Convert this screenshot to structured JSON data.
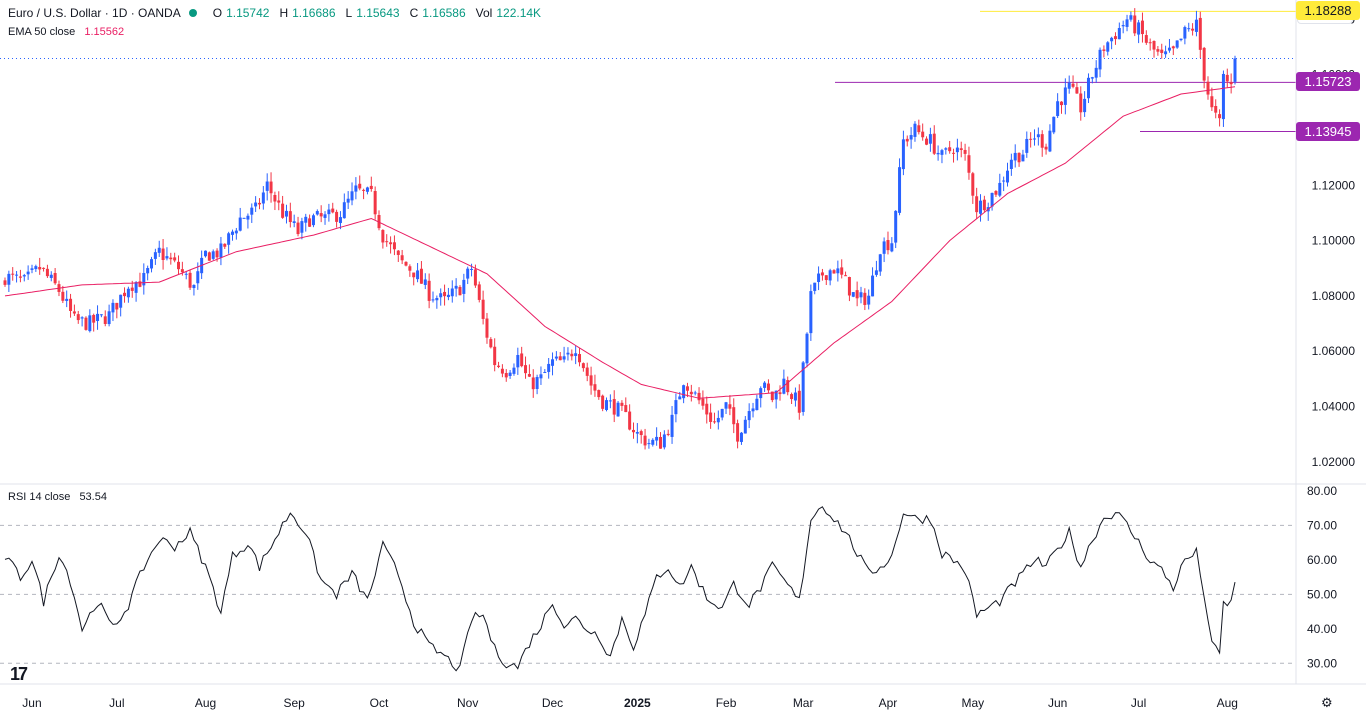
{
  "header": {
    "symbol": "Euro / U.S. Dollar · 1D · OANDA",
    "o_label": "O",
    "o": "1.15742",
    "h_label": "H",
    "h": "1.16686",
    "l_label": "L",
    "l": "1.15643",
    "c_label": "C",
    "c": "1.16586",
    "vol_label": "Vol",
    "vol": "122.14K",
    "currency": "USD"
  },
  "ema": {
    "label": "EMA 50 close",
    "value": "1.15562"
  },
  "rsi": {
    "label": "RSI 14 close",
    "value": "53.54"
  },
  "colors": {
    "up": "#2962ff",
    "down": "#f23645",
    "ema": "#e91e63",
    "rsi": "#131722",
    "resistance": "#ffeb3b",
    "support": "#9c27b0"
  },
  "icons": {
    "logo": "tradingview-logo-icon",
    "settings": "gear-icon"
  },
  "chart_data": [
    {
      "type": "candlestick",
      "title": "Euro / U.S. Dollar · 1D · OANDA",
      "ylim": [
        1.012,
        1.187
      ],
      "y_ticks": [
        "1.18000",
        "1.16000",
        "1.14000",
        "1.12000",
        "1.10000",
        "1.08000",
        "1.06000",
        "1.04000",
        "1.02000"
      ],
      "x_ticks": [
        {
          "label": "Jun",
          "i": 7
        },
        {
          "label": "Jul",
          "i": 29
        },
        {
          "label": "Aug",
          "i": 52
        },
        {
          "label": "Sep",
          "i": 75
        },
        {
          "label": "Oct",
          "i": 97
        },
        {
          "label": "Nov",
          "i": 120
        },
        {
          "label": "Dec",
          "i": 142
        },
        {
          "label": "2025",
          "i": 164
        },
        {
          "label": "Feb",
          "i": 187
        },
        {
          "label": "Mar",
          "i": 207
        },
        {
          "label": "Apr",
          "i": 229
        },
        {
          "label": "May",
          "i": 251
        },
        {
          "label": "Jun",
          "i": 273
        },
        {
          "label": "Jul",
          "i": 294
        },
        {
          "label": "Aug",
          "i": 317
        }
      ],
      "price_levels": [
        {
          "value": 1.18288,
          "label": "1.18288",
          "kind": "resistance"
        },
        {
          "value": 1.15723,
          "label": "1.15723",
          "kind": "support"
        },
        {
          "value": 1.13945,
          "label": "1.13945",
          "kind": "support"
        }
      ],
      "current_price": 1.16586,
      "close_anchors": [
        [
          0,
          1.087
        ],
        [
          5,
          1.085
        ],
        [
          9,
          1.09
        ],
        [
          14,
          1.082
        ],
        [
          18,
          1.071
        ],
        [
          22,
          1.07
        ],
        [
          27,
          1.073
        ],
        [
          32,
          1.084
        ],
        [
          36,
          1.086
        ],
        [
          40,
          1.096
        ],
        [
          45,
          1.09
        ],
        [
          49,
          1.083
        ],
        [
          52,
          1.095
        ],
        [
          56,
          1.096
        ],
        [
          61,
          1.108
        ],
        [
          65,
          1.111
        ],
        [
          68,
          1.12
        ],
        [
          72,
          1.11
        ],
        [
          76,
          1.103
        ],
        [
          79,
          1.108
        ],
        [
          83,
          1.108
        ],
        [
          87,
          1.11
        ],
        [
          91,
          1.118
        ],
        [
          95,
          1.116
        ],
        [
          98,
          1.102
        ],
        [
          102,
          1.093
        ],
        [
          106,
          1.089
        ],
        [
          110,
          1.081
        ],
        [
          114,
          1.078
        ],
        [
          118,
          1.083
        ],
        [
          121,
          1.09
        ],
        [
          124,
          1.071
        ],
        [
          127,
          1.056
        ],
        [
          130,
          1.053
        ],
        [
          133,
          1.058
        ],
        [
          136,
          1.048
        ],
        [
          139,
          1.05
        ],
        [
          142,
          1.056
        ],
        [
          145,
          1.056
        ],
        [
          148,
          1.062
        ],
        [
          152,
          1.048
        ],
        [
          155,
          1.042
        ],
        [
          158,
          1.04
        ],
        [
          161,
          1.036
        ],
        [
          164,
          1.03
        ],
        [
          167,
          1.027
        ],
        [
          170,
          1.027
        ],
        [
          173,
          1.035
        ],
        [
          176,
          1.05
        ],
        [
          180,
          1.042
        ],
        [
          184,
          1.034
        ],
        [
          187,
          1.04
        ],
        [
          190,
          1.03
        ],
        [
          193,
          1.039
        ],
        [
          196,
          1.048
        ],
        [
          199,
          1.043
        ],
        [
          202,
          1.049
        ],
        [
          206,
          1.04
        ],
        [
          209,
          1.08
        ],
        [
          212,
          1.088
        ],
        [
          215,
          1.09
        ],
        [
          218,
          1.085
        ],
        [
          221,
          1.078
        ],
        [
          224,
          1.08
        ],
        [
          227,
          1.098
        ],
        [
          230,
          1.1
        ],
        [
          233,
          1.136
        ],
        [
          236,
          1.14
        ],
        [
          240,
          1.136
        ],
        [
          243,
          1.13
        ],
        [
          246,
          1.134
        ],
        [
          249,
          1.13
        ],
        [
          252,
          1.112
        ],
        [
          255,
          1.115
        ],
        [
          258,
          1.12
        ],
        [
          261,
          1.13
        ],
        [
          264,
          1.132
        ],
        [
          267,
          1.138
        ],
        [
          270,
          1.135
        ],
        [
          273,
          1.15
        ],
        [
          276,
          1.155
        ],
        [
          279,
          1.148
        ],
        [
          282,
          1.16
        ],
        [
          285,
          1.17
        ],
        [
          288,
          1.175
        ],
        [
          291,
          1.18
        ],
        [
          294,
          1.176
        ],
        [
          297,
          1.17
        ],
        [
          300,
          1.166
        ],
        [
          303,
          1.168
        ],
        [
          306,
          1.175
        ],
        [
          309,
          1.178
        ],
        [
          311,
          1.16
        ],
        [
          313,
          1.147
        ],
        [
          315,
          1.142
        ],
        [
          316,
          1.159
        ],
        [
          318,
          1.156
        ],
        [
          319,
          1.16586
        ]
      ],
      "ema_anchors": [
        [
          0,
          1.08
        ],
        [
          20,
          1.084
        ],
        [
          40,
          1.085
        ],
        [
          60,
          1.096
        ],
        [
          80,
          1.102
        ],
        [
          95,
          1.108
        ],
        [
          110,
          1.098
        ],
        [
          125,
          1.088
        ],
        [
          140,
          1.069
        ],
        [
          155,
          1.056
        ],
        [
          165,
          1.048
        ],
        [
          180,
          1.043
        ],
        [
          200,
          1.045
        ],
        [
          215,
          1.063
        ],
        [
          230,
          1.078
        ],
        [
          245,
          1.1
        ],
        [
          260,
          1.117
        ],
        [
          275,
          1.128
        ],
        [
          290,
          1.145
        ],
        [
          305,
          1.153
        ],
        [
          319,
          1.15562
        ]
      ]
    },
    {
      "type": "line",
      "title": "RSI 14 close",
      "ylim": [
        24,
        82
      ],
      "y_ticks": [
        "80.00",
        "70.00",
        "60.00",
        "50.00",
        "40.00",
        "30.00"
      ],
      "dashed_levels": [
        70,
        50,
        30
      ],
      "last_value": 53.54,
      "anchors": [
        [
          0,
          61
        ],
        [
          4,
          55
        ],
        [
          7,
          60
        ],
        [
          10,
          48
        ],
        [
          14,
          62
        ],
        [
          17,
          54
        ],
        [
          20,
          40
        ],
        [
          24,
          48
        ],
        [
          28,
          40
        ],
        [
          32,
          47
        ],
        [
          36,
          58
        ],
        [
          40,
          66
        ],
        [
          44,
          64
        ],
        [
          48,
          68
        ],
        [
          52,
          58
        ],
        [
          56,
          45
        ],
        [
          59,
          61
        ],
        [
          63,
          65
        ],
        [
          66,
          58
        ],
        [
          70,
          66
        ],
        [
          74,
          74
        ],
        [
          78,
          68
        ],
        [
          82,
          54
        ],
        [
          86,
          50
        ],
        [
          90,
          56
        ],
        [
          94,
          48
        ],
        [
          98,
          64
        ],
        [
          102,
          56
        ],
        [
          106,
          42
        ],
        [
          110,
          35
        ],
        [
          114,
          32
        ],
        [
          118,
          28
        ],
        [
          121,
          43
        ],
        [
          124,
          44
        ],
        [
          127,
          34
        ],
        [
          130,
          30
        ],
        [
          133,
          29
        ],
        [
          136,
          36
        ],
        [
          139,
          41
        ],
        [
          142,
          48
        ],
        [
          145,
          41
        ],
        [
          148,
          43
        ],
        [
          151,
          40
        ],
        [
          154,
          38
        ],
        [
          157,
          32
        ],
        [
          160,
          43
        ],
        [
          163,
          35
        ],
        [
          166,
          44
        ],
        [
          169,
          55
        ],
        [
          172,
          58
        ],
        [
          175,
          52
        ],
        [
          178,
          58
        ],
        [
          182,
          49
        ],
        [
          186,
          46
        ],
        [
          189,
          53
        ],
        [
          193,
          47
        ],
        [
          196,
          52
        ],
        [
          199,
          58
        ],
        [
          202,
          54
        ],
        [
          206,
          48
        ],
        [
          209,
          72
        ],
        [
          212,
          76
        ],
        [
          215,
          72
        ],
        [
          218,
          68
        ],
        [
          221,
          62
        ],
        [
          224,
          56
        ],
        [
          227,
          58
        ],
        [
          230,
          61
        ],
        [
          233,
          74
        ],
        [
          236,
          72
        ],
        [
          240,
          72
        ],
        [
          243,
          62
        ],
        [
          246,
          60
        ],
        [
          249,
          57
        ],
        [
          252,
          44
        ],
        [
          255,
          46
        ],
        [
          258,
          48
        ],
        [
          261,
          52
        ],
        [
          264,
          56
        ],
        [
          267,
          60
        ],
        [
          270,
          58
        ],
        [
          273,
          63
        ],
        [
          276,
          68
        ],
        [
          279,
          58
        ],
        [
          282,
          66
        ],
        [
          285,
          72
        ],
        [
          288,
          74
        ],
        [
          291,
          70
        ],
        [
          294,
          65
        ],
        [
          297,
          60
        ],
        [
          300,
          57
        ],
        [
          303,
          52
        ],
        [
          306,
          60
        ],
        [
          309,
          62
        ],
        [
          311,
          50
        ],
        [
          313,
          35
        ],
        [
          315,
          33
        ],
        [
          316,
          47
        ],
        [
          318,
          48
        ],
        [
          319,
          53.54
        ]
      ]
    }
  ]
}
